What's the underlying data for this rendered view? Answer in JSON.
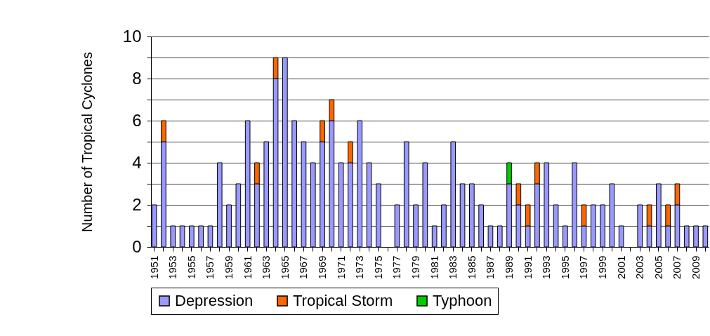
{
  "chart_data": {
    "type": "bar",
    "stacked": true,
    "ylabel": "Number of Tropical Cyclones",
    "categories": [
      "1951",
      null,
      "1953",
      null,
      "1955",
      null,
      "1957",
      null,
      "1959",
      null,
      "1961",
      null,
      "1963",
      null,
      "1965",
      null,
      "1967",
      null,
      "1969",
      null,
      "1971",
      null,
      "1973",
      null,
      "1975",
      null,
      "1977",
      null,
      "1979",
      null,
      "1981",
      null,
      "1983",
      null,
      "1985",
      null,
      "1987",
      null,
      "1989",
      null,
      "1991",
      null,
      "1993",
      null,
      "1995",
      null,
      "1997",
      null,
      "1999",
      null,
      "2001",
      null,
      "2003",
      null,
      "2005",
      null,
      "2007",
      null,
      "2009",
      null
    ],
    "series": [
      {
        "name": "Depression",
        "color": "#9999ff",
        "values": [
          2,
          5,
          1,
          1,
          1,
          1,
          1,
          4,
          2,
          3,
          6,
          3,
          5,
          8,
          9,
          6,
          5,
          4,
          5,
          6,
          4,
          4,
          6,
          4,
          3,
          0,
          2,
          5,
          2,
          4,
          1,
          2,
          5,
          3,
          3,
          2,
          1,
          1,
          3,
          2,
          1,
          3,
          4,
          2,
          1,
          4,
          1,
          2,
          2,
          3,
          1,
          0,
          2,
          1,
          3,
          1,
          2,
          1,
          1,
          1
        ]
      },
      {
        "name": "Tropical Storm",
        "color": "#ff6600",
        "values": [
          null,
          1,
          null,
          null,
          null,
          null,
          null,
          null,
          null,
          null,
          null,
          1,
          null,
          1,
          null,
          null,
          null,
          null,
          1,
          1,
          null,
          1,
          null,
          null,
          null,
          null,
          null,
          null,
          null,
          null,
          null,
          null,
          null,
          null,
          null,
          null,
          null,
          null,
          null,
          1,
          1,
          1,
          null,
          null,
          null,
          null,
          1,
          null,
          null,
          null,
          null,
          null,
          null,
          1,
          null,
          1,
          1,
          null,
          null,
          null
        ]
      },
      {
        "name": "Typhoon",
        "color": "#00cc00",
        "values": [
          null,
          null,
          null,
          null,
          null,
          null,
          null,
          null,
          null,
          null,
          null,
          null,
          null,
          null,
          null,
          null,
          null,
          null,
          null,
          null,
          null,
          null,
          null,
          null,
          null,
          null,
          null,
          null,
          null,
          null,
          null,
          null,
          null,
          null,
          null,
          null,
          null,
          null,
          1,
          null,
          null,
          null,
          null,
          null,
          null,
          null,
          null,
          null,
          null,
          null,
          null,
          null,
          null,
          null,
          null,
          null,
          null,
          null,
          null,
          null
        ]
      }
    ],
    "ylim": [
      0,
      10
    ],
    "yticks": [
      0,
      {
        "value": 1,
        "label": null
      },
      2,
      {
        "value": 3,
        "label": null
      },
      4,
      {
        "value": 5,
        "label": null
      },
      6,
      {
        "value": 7,
        "label": null
      },
      8,
      {
        "value": 9,
        "label": null
      },
      10
    ],
    "grid": "y",
    "legend": "bottom"
  }
}
